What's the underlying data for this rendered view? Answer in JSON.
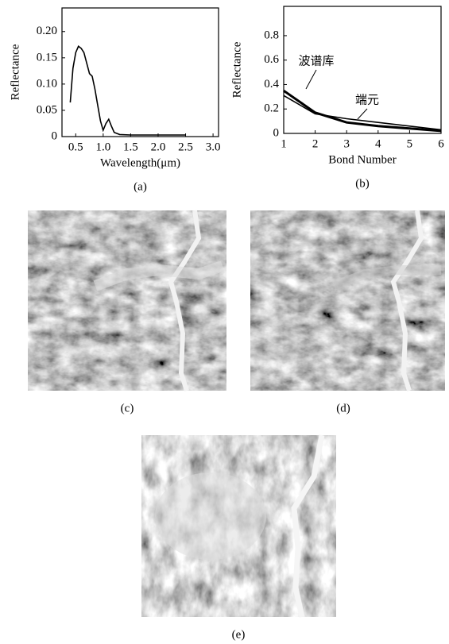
{
  "chart_data": [
    {
      "type": "line",
      "caption": "(a)",
      "x_label": "Wavelength(μm)",
      "y_label": "Reflectance",
      "x": [
        0.4,
        0.45,
        0.5,
        0.55,
        0.6,
        0.65,
        0.7,
        0.75,
        0.8,
        0.85,
        0.9,
        0.95,
        1.0,
        1.05,
        1.1,
        1.15,
        1.2,
        1.3,
        1.5,
        2.0,
        2.5
      ],
      "values": [
        0.065,
        0.13,
        0.16,
        0.172,
        0.168,
        0.16,
        0.14,
        0.12,
        0.115,
        0.09,
        0.06,
        0.03,
        0.012,
        0.025,
        0.033,
        0.02,
        0.008,
        0.004,
        0.003,
        0.003,
        0.003
      ],
      "color": "#000000",
      "xlim": [
        0.25,
        3.1
      ],
      "ylim": [
        0,
        0.245
      ],
      "xticks": [
        0.5,
        {
          "value": 1,
          "label": "1.0"
        },
        1.5,
        {
          "value": 2,
          "label": "2.0"
        },
        2.5,
        {
          "value": 3,
          "label": "3.0"
        }
      ],
      "yticks": [
        0,
        0.05,
        {
          "value": 0.1,
          "label": "0.10"
        },
        0.15,
        {
          "value": 0.2,
          "label": "0.20"
        }
      ]
    },
    {
      "type": "line",
      "caption": "(b)",
      "x_label": "Bond Number",
      "y_label": "Reflectance",
      "x": [
        1,
        2,
        3,
        4,
        5,
        6
      ],
      "series": [
        {
          "name": "波谱库",
          "color": "#000000",
          "values": [
            0.35,
            0.17,
            0.09,
            0.06,
            0.04,
            0.02
          ]
        },
        {
          "name": "端元",
          "color": "#000000",
          "values": [
            0.31,
            0.16,
            0.12,
            0.09,
            0.06,
            0.03
          ]
        }
      ],
      "xlim": [
        1,
        6
      ],
      "ylim": [
        0,
        1.04
      ],
      "xticks": [
        1,
        2,
        3,
        4,
        5,
        6
      ],
      "yticks": [
        0,
        0.2,
        0.4,
        0.6,
        0.8
      ]
    }
  ],
  "images": {
    "captions": [
      "(c)",
      "(d)",
      "(e)"
    ]
  }
}
